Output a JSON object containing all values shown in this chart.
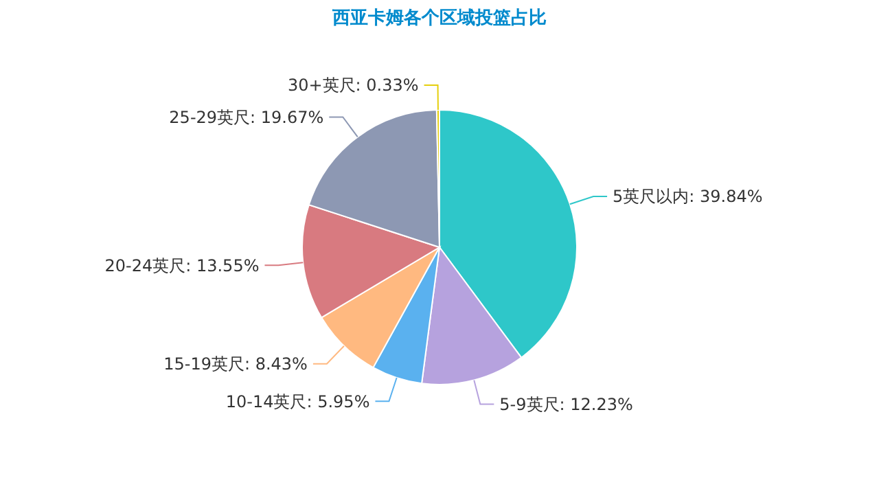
{
  "chart_data": {
    "type": "pie",
    "title": "西亚卡姆各个区域投篮占比",
    "categories": [
      "5英尺以内",
      "5-9英尺",
      "10-14英尺",
      "15-19英尺",
      "20-24英尺",
      "25-29英尺",
      "30+英尺"
    ],
    "values": [
      39.84,
      12.23,
      5.95,
      8.43,
      13.55,
      19.67,
      0.33
    ],
    "value_labels": [
      "39.84%",
      "12.23%",
      "5.95%",
      "8.43%",
      "13.55%",
      "19.67%",
      "0.33%"
    ],
    "colors": [
      "#2ec7c9",
      "#b6a2de",
      "#5ab1ef",
      "#ffb980",
      "#d87a80",
      "#8d98b3",
      "#e5cf0d"
    ],
    "legend": false
  }
}
